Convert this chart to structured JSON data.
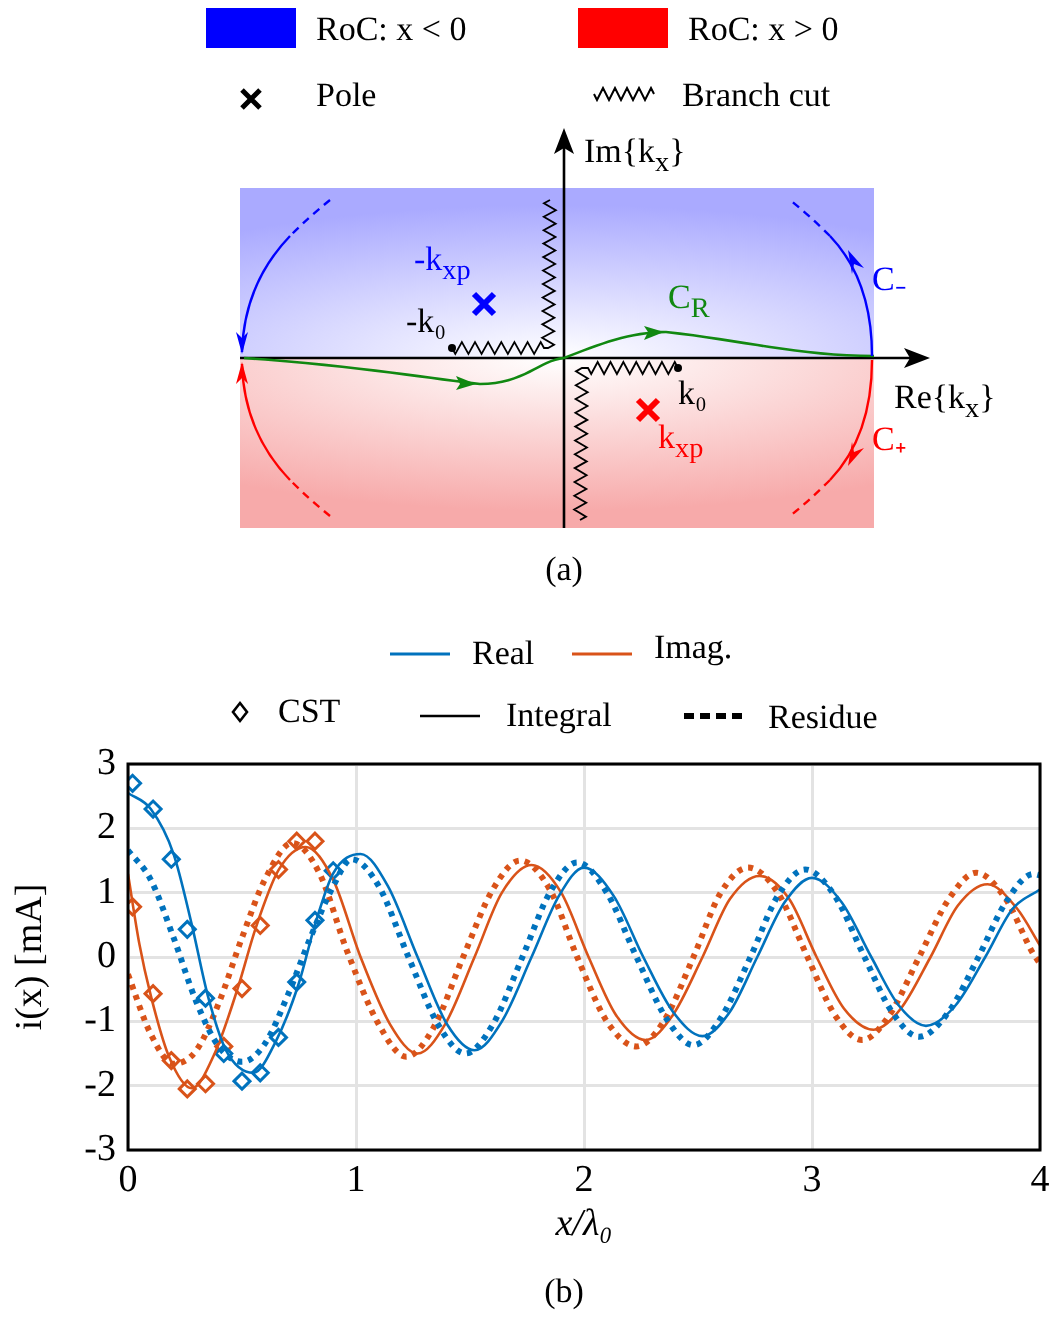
{
  "chart_data": [
    {
      "type": "other",
      "annotations": [
        "RoC: x < 0",
        "RoC: x > 0",
        "Pole",
        "Branch cut",
        "Im{k$_{x}$}",
        "Re{k$_{x}$}",
        "-k$_{xp}$",
        "-k₀",
        "C$_{R}$",
        "k₀",
        "k$_{xp}$",
        "C₋",
        "C₊",
        "(a)"
      ]
    },
    {
      "type": "line",
      "xlabel": "x/λ₀",
      "ylabel": "i(x) [mA]",
      "xlim": [
        0,
        4
      ],
      "ylim": [
        -3,
        3
      ],
      "xticks": [
        0,
        1,
        2,
        3,
        4
      ],
      "yticks": [
        -3,
        -2,
        -1,
        0,
        1,
        2,
        3
      ],
      "grid": true,
      "annotations": [
        "Real",
        "Imag.",
        "CST",
        "Integral",
        "Residue",
        "(b)"
      ],
      "series": [
        {
          "type": "line",
          "color": "#0072bd",
          "line_style": "solid",
          "marker": "none",
          "x": [
            0,
            0.1,
            0.2,
            0.28,
            0.35,
            0.43,
            0.55,
            0.65,
            0.75,
            0.82,
            0.9,
            1.02,
            1.14,
            1.27,
            1.4,
            1.52,
            1.64,
            1.77,
            1.89,
            2.0,
            2.13,
            2.26,
            2.39,
            2.52,
            2.64,
            2.76,
            2.88,
            3.0,
            3.13,
            3.26,
            3.38,
            3.5,
            3.63,
            3.76,
            3.88,
            4.0
          ],
          "values": [
            2.55,
            2.3,
            1.6,
            0.5,
            -0.6,
            -1.45,
            -1.8,
            -1.3,
            -0.4,
            0.5,
            1.3,
            1.6,
            1.1,
            0,
            -1.05,
            -1.45,
            -1.0,
            0,
            0.95,
            1.39,
            0.95,
            0,
            -0.85,
            -1.23,
            -0.85,
            0,
            0.85,
            1.23,
            0.85,
            0,
            -0.75,
            -1.07,
            -0.75,
            0,
            0.75,
            1.05
          ]
        },
        {
          "type": "line",
          "color": "#0072bd",
          "line_style": "dotted",
          "marker": "none",
          "x": [
            0,
            0.1,
            0.2,
            0.3,
            0.4,
            0.5,
            0.6,
            0.7,
            0.8,
            0.9,
            0.98,
            1.1,
            1.23,
            1.36,
            1.48,
            1.6,
            1.73,
            1.85,
            1.97,
            2.1,
            2.23,
            2.36,
            2.48,
            2.6,
            2.73,
            2.85,
            2.97,
            3.1,
            3.23,
            3.35,
            3.47,
            3.6,
            3.73,
            3.85,
            3.97,
            4.0
          ],
          "values": [
            1.66,
            1.2,
            0.3,
            -0.7,
            -1.4,
            -1.63,
            -1.35,
            -0.6,
            0.3,
            1.1,
            1.52,
            1.1,
            0,
            -1.05,
            -1.5,
            -1.05,
            0,
            1.0,
            1.47,
            1.0,
            0,
            -0.95,
            -1.37,
            -0.95,
            0,
            0.95,
            1.36,
            0.95,
            0,
            -0.85,
            -1.24,
            -0.85,
            0,
            0.85,
            1.29,
            1.27
          ]
        },
        {
          "type": "line",
          "color": "#d95319",
          "line_style": "solid",
          "marker": "none",
          "x": [
            0,
            0.05,
            0.1,
            0.18,
            0.28,
            0.38,
            0.48,
            0.56,
            0.66,
            0.78,
            0.9,
            1.02,
            1.15,
            1.27,
            1.39,
            1.52,
            1.64,
            1.77,
            1.9,
            2.02,
            2.14,
            2.27,
            2.39,
            2.52,
            2.64,
            2.77,
            2.9,
            3.02,
            3.14,
            3.27,
            3.39,
            3.52,
            3.64,
            3.77,
            3.9,
            4.0
          ],
          "values": [
            1.29,
            0.2,
            -0.6,
            -1.55,
            -2.04,
            -1.5,
            -0.5,
            0.45,
            1.35,
            1.71,
            1.2,
            0,
            -1.05,
            -1.5,
            -1.05,
            0,
            1.0,
            1.43,
            1.0,
            0,
            -0.9,
            -1.29,
            -0.9,
            0,
            0.9,
            1.26,
            0.9,
            0,
            -0.8,
            -1.13,
            -0.8,
            0,
            0.8,
            1.13,
            0.75,
            0.18
          ]
        },
        {
          "type": "line",
          "color": "#d95319",
          "line_style": "dotted",
          "marker": "none",
          "x": [
            0,
            0.1,
            0.2,
            0.3,
            0.4,
            0.5,
            0.6,
            0.72,
            0.84,
            0.96,
            1.1,
            1.22,
            1.34,
            1.47,
            1.6,
            1.72,
            1.85,
            1.97,
            2.1,
            2.23,
            2.35,
            2.48,
            2.6,
            2.72,
            2.85,
            2.98,
            3.1,
            3.22,
            3.34,
            3.47,
            3.6,
            3.72,
            3.85,
            3.97,
            4.0
          ],
          "values": [
            -0.27,
            -1.2,
            -1.66,
            -1.45,
            -0.7,
            0.3,
            1.2,
            1.77,
            1.3,
            0.1,
            -1.05,
            -1.55,
            -1.1,
            0,
            1.05,
            1.5,
            1.05,
            0,
            -1.0,
            -1.39,
            -1.0,
            0,
            1.0,
            1.39,
            1.0,
            0,
            -0.9,
            -1.29,
            -0.9,
            0,
            0.9,
            1.31,
            0.9,
            0.05,
            -0.1
          ]
        },
        {
          "type": "scatter",
          "color": "#0072bd",
          "marker": "diamond",
          "x": [
            0.02,
            0.11,
            0.19,
            0.26,
            0.34,
            0.42,
            0.5,
            0.58,
            0.66,
            0.74,
            0.82,
            0.9
          ],
          "values": [
            2.7,
            2.3,
            1.52,
            0.43,
            -0.64,
            -1.5,
            -1.93,
            -1.8,
            -1.25,
            -0.39,
            0.57,
            1.34
          ]
        },
        {
          "type": "scatter",
          "color": "#d95319",
          "marker": "diamond",
          "x": [
            0.02,
            0.11,
            0.19,
            0.26,
            0.34,
            0.42,
            0.5,
            0.58,
            0.66,
            0.74,
            0.82
          ],
          "values": [
            0.78,
            -0.57,
            -1.61,
            -2.05,
            -1.97,
            -1.39,
            -0.49,
            0.49,
            1.36,
            1.8,
            1.8
          ]
        }
      ]
    }
  ]
}
